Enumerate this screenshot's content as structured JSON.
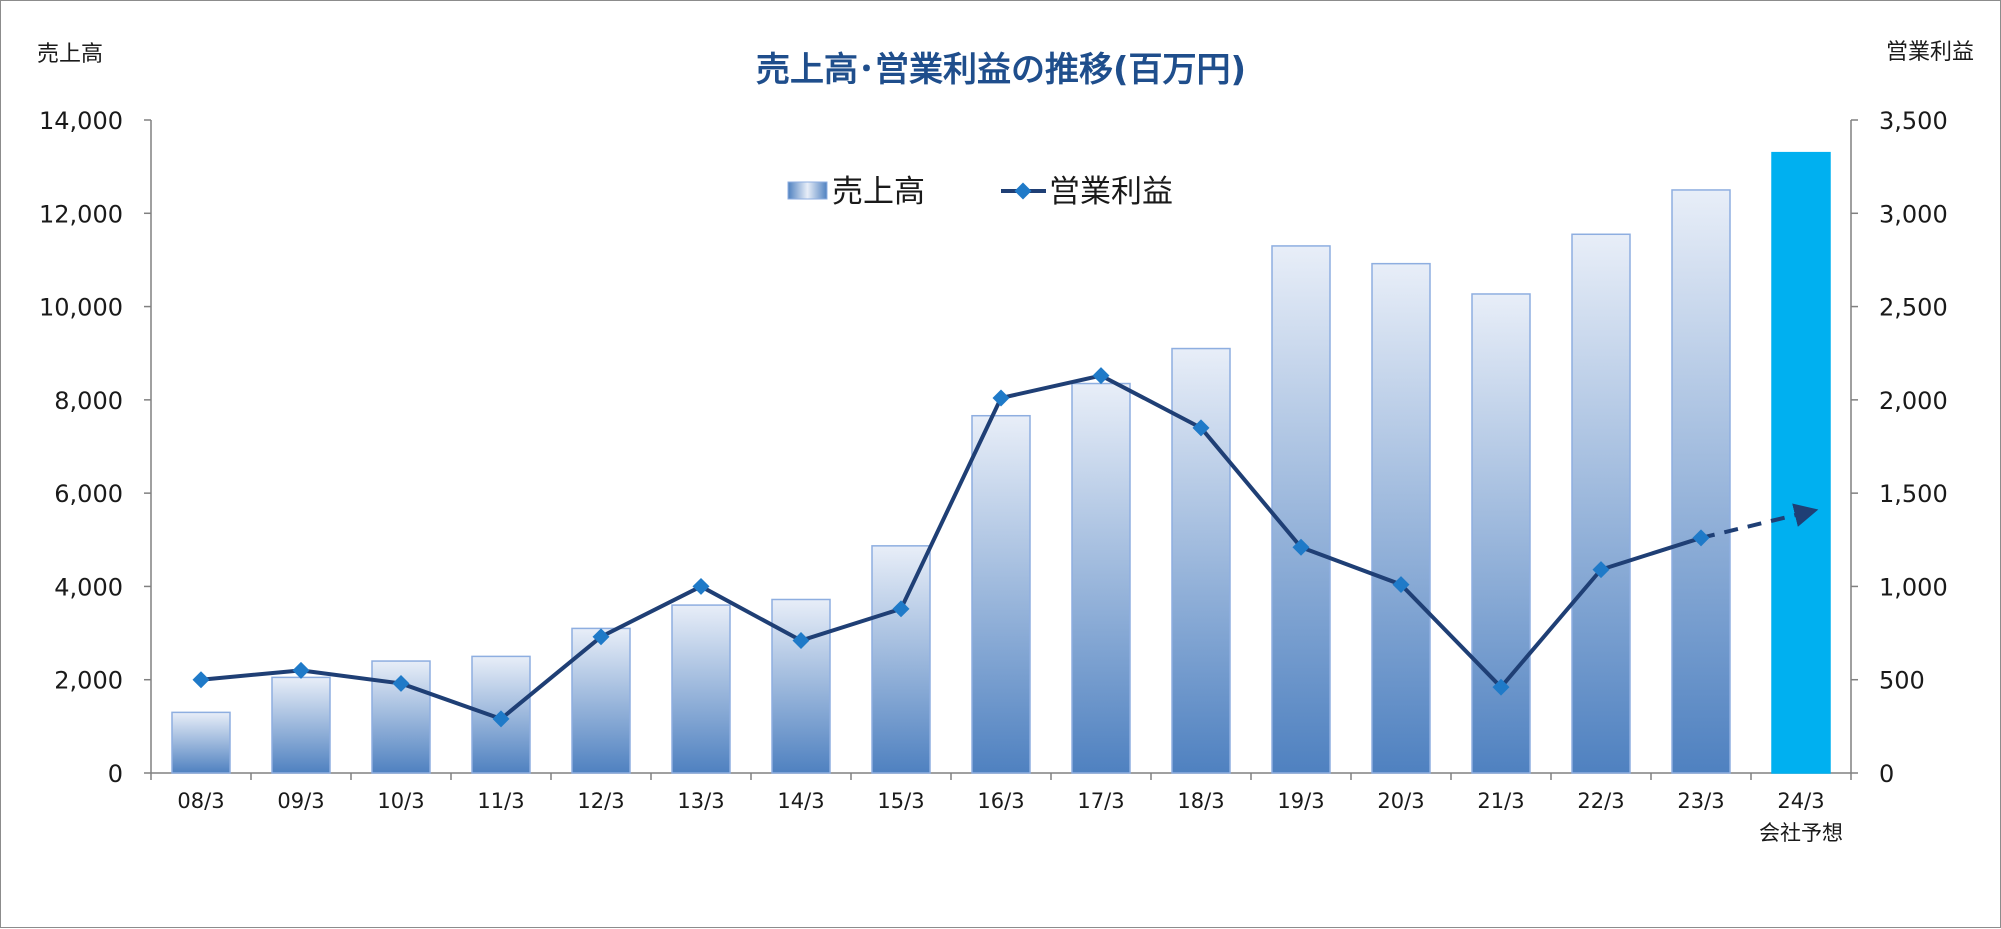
{
  "chart_data": {
    "type": "bar",
    "title": "売上高･営業利益の推移(百万円)",
    "ylabel_left": "売上高",
    "ylabel_right": "営業利益",
    "categories": [
      "08/3",
      "09/3",
      "10/3",
      "11/3",
      "12/3",
      "13/3",
      "14/3",
      "15/3",
      "16/3",
      "17/3",
      "18/3",
      "19/3",
      "20/3",
      "21/3",
      "22/3",
      "23/3",
      "24/3"
    ],
    "category_sublabels": {
      "24/3": "会社予想"
    },
    "y_left_ticks": [
      "0",
      "2,000",
      "4,000",
      "6,000",
      "8,000",
      "10,000",
      "12,000",
      "14,000"
    ],
    "y_right_ticks": [
      "0",
      "500",
      "1,000",
      "1,500",
      "2,000",
      "2,500",
      "3,000",
      "3,500"
    ],
    "ylim_left": [
      0,
      14000
    ],
    "ylim_right": [
      0,
      3500
    ],
    "legend_placement": "top-center",
    "grid": false,
    "series": [
      {
        "name": "売上高",
        "type": "bar",
        "axis": "left",
        "values": [
          1300,
          2050,
          2400,
          2500,
          3100,
          3600,
          3720,
          4870,
          7660,
          8350,
          9100,
          11300,
          10920,
          10270,
          11550,
          12500,
          13300
        ],
        "forecast_index": 16
      },
      {
        "name": "営業利益",
        "type": "line",
        "axis": "right",
        "values": [
          500,
          550,
          480,
          290,
          730,
          1000,
          710,
          880,
          2010,
          2130,
          1850,
          1210,
          1010,
          460,
          1090,
          1260,
          1400
        ],
        "forecast_index": 16
      }
    ],
    "colors": {
      "bar_top": "#e8eef8",
      "bar_bottom": "#4f81c0",
      "bar_border": "#8eaee0",
      "forecast_bar": "#00b0f0",
      "line": "#1f3f75",
      "marker": "#1f7ac8",
      "title": "#1f4e8c"
    }
  }
}
